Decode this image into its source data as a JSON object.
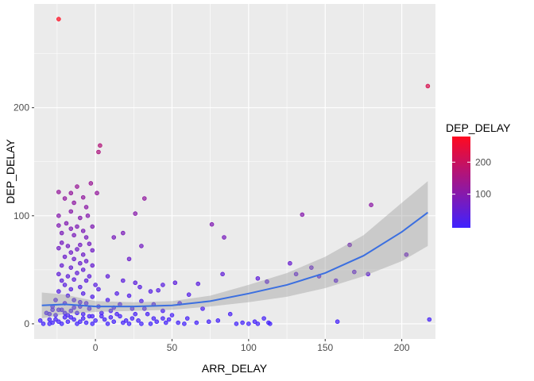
{
  "chart_data": {
    "type": "scatter",
    "xlabel": "ARR_DELAY",
    "ylabel": "DEP_DELAY",
    "xlim": [
      -40,
      222
    ],
    "ylim": [
      -14,
      296
    ],
    "x_ticks": [
      0,
      50,
      100,
      150,
      200
    ],
    "y_ticks": [
      0,
      100,
      200
    ],
    "grid": true,
    "panel_background": "#ebebeb",
    "legend": {
      "title": "DEP_DELAY",
      "position": "right",
      "breaks": [
        100,
        200
      ],
      "color_low": "#3f22ff",
      "color_high": "#ff0a1f",
      "range": [
        -5,
        280
      ]
    },
    "smooth": {
      "method": "quadratic",
      "color": "#3b6fe0",
      "band_color": "#999999",
      "points": [
        {
          "x": -35,
          "y": 17,
          "lo": 5,
          "hi": 29
        },
        {
          "x": -20,
          "y": 18,
          "lo": 9,
          "hi": 27
        },
        {
          "x": 0,
          "y": 16,
          "lo": 11,
          "hi": 21
        },
        {
          "x": 25,
          "y": 16,
          "lo": 12,
          "hi": 20
        },
        {
          "x": 50,
          "y": 17,
          "lo": 13,
          "hi": 21
        },
        {
          "x": 75,
          "y": 21,
          "lo": 16,
          "hi": 26
        },
        {
          "x": 100,
          "y": 28,
          "lo": 20,
          "hi": 36
        },
        {
          "x": 125,
          "y": 36,
          "lo": 25,
          "hi": 47
        },
        {
          "x": 150,
          "y": 47,
          "lo": 33,
          "hi": 62
        },
        {
          "x": 175,
          "y": 63,
          "lo": 44,
          "hi": 82
        },
        {
          "x": 200,
          "y": 85,
          "lo": 58,
          "hi": 112
        },
        {
          "x": 217,
          "y": 103,
          "lo": 72,
          "hi": 132
        }
      ]
    },
    "points": [
      [
        -24,
        282
      ],
      [
        217,
        220
      ],
      [
        3,
        165
      ],
      [
        2,
        159
      ],
      [
        -3,
        130
      ],
      [
        -12,
        127
      ],
      [
        -24,
        122
      ],
      [
        -16,
        121
      ],
      [
        1,
        121
      ],
      [
        -8,
        117
      ],
      [
        -20,
        116
      ],
      [
        32,
        116
      ],
      [
        -14,
        112
      ],
      [
        -6,
        108
      ],
      [
        -16,
        104
      ],
      [
        -24,
        100
      ],
      [
        -5,
        100
      ],
      [
        -10,
        98
      ],
      [
        26,
        102
      ],
      [
        135,
        101
      ],
      [
        180,
        110
      ],
      [
        -19,
        93
      ],
      [
        -24,
        91
      ],
      [
        -12,
        90
      ],
      [
        -2,
        90
      ],
      [
        76,
        92
      ],
      [
        -16,
        88
      ],
      [
        -8,
        86
      ],
      [
        -22,
        84
      ],
      [
        18,
        84
      ],
      [
        -14,
        82
      ],
      [
        84,
        80
      ],
      [
        -6,
        80
      ],
      [
        12,
        80
      ],
      [
        -22,
        75
      ],
      [
        -18,
        72
      ],
      [
        -10,
        73
      ],
      [
        -4,
        74
      ],
      [
        30,
        72
      ],
      [
        -24,
        70
      ],
      [
        -12,
        69
      ],
      [
        -2,
        68
      ],
      [
        -16,
        66
      ],
      [
        -8,
        64
      ],
      [
        -20,
        62
      ],
      [
        -14,
        60
      ],
      [
        -6,
        58
      ],
      [
        22,
        60
      ],
      [
        -10,
        56
      ],
      [
        -22,
        54
      ],
      [
        -2,
        54
      ],
      [
        -16,
        52
      ],
      [
        -8,
        50
      ],
      [
        127,
        56
      ],
      [
        141,
        52
      ],
      [
        166,
        73
      ],
      [
        169,
        48
      ],
      [
        178,
        46
      ],
      [
        203,
        64
      ],
      [
        157,
        40
      ],
      [
        146,
        44
      ],
      [
        131,
        46
      ],
      [
        106,
        42
      ],
      [
        112,
        39
      ],
      [
        -24,
        46
      ],
      [
        -12,
        47
      ],
      [
        -18,
        44
      ],
      [
        -4,
        44
      ],
      [
        8,
        44
      ],
      [
        -22,
        40
      ],
      [
        -14,
        41
      ],
      [
        -6,
        40
      ],
      [
        18,
        40
      ],
      [
        26,
        38
      ],
      [
        -20,
        36
      ],
      [
        -10,
        34
      ],
      [
        0,
        36
      ],
      [
        -16,
        32
      ],
      [
        2,
        32
      ],
      [
        44,
        36
      ],
      [
        83,
        46
      ],
      [
        52,
        38
      ],
      [
        67,
        37
      ],
      [
        29,
        34
      ],
      [
        36,
        30
      ],
      [
        -24,
        30
      ],
      [
        -8,
        28
      ],
      [
        14,
        28
      ],
      [
        41,
        31
      ],
      [
        -18,
        26
      ],
      [
        -2,
        25
      ],
      [
        22,
        26
      ],
      [
        61,
        27
      ],
      [
        -14,
        22
      ],
      [
        -26,
        22
      ],
      [
        8,
        22
      ],
      [
        30,
        21
      ],
      [
        -20,
        19
      ],
      [
        -6,
        19
      ],
      [
        16,
        18
      ],
      [
        38,
        18
      ],
      [
        55,
        19
      ],
      [
        -10,
        16
      ],
      [
        -28,
        16
      ],
      [
        2,
        16
      ],
      [
        24,
        14
      ],
      [
        -22,
        13
      ],
      [
        -16,
        12
      ],
      [
        10,
        12
      ],
      [
        44,
        12
      ],
      [
        70,
        14
      ],
      [
        -32,
        10
      ],
      [
        -12,
        10
      ],
      [
        4,
        10
      ],
      [
        34,
        9
      ],
      [
        -26,
        8
      ],
      [
        -4,
        7
      ],
      [
        16,
        7
      ],
      [
        50,
        8
      ],
      [
        88,
        9
      ],
      [
        -20,
        6
      ],
      [
        -8,
        5
      ],
      [
        24,
        5
      ],
      [
        -30,
        4
      ],
      [
        -14,
        4
      ],
      [
        6,
        4
      ],
      [
        60,
        5
      ],
      [
        -36,
        3
      ],
      [
        -24,
        2
      ],
      [
        -18,
        2
      ],
      [
        -10,
        2
      ],
      [
        0,
        3
      ],
      [
        12,
        2
      ],
      [
        28,
        3
      ],
      [
        40,
        2
      ],
      [
        -28,
        1
      ],
      [
        -6,
        1
      ],
      [
        18,
        1
      ],
      [
        46,
        1
      ],
      [
        80,
        3
      ],
      [
        -22,
        0
      ],
      [
        -12,
        0
      ],
      [
        -2,
        0
      ],
      [
        8,
        0
      ],
      [
        22,
        0
      ],
      [
        36,
        0
      ],
      [
        54,
        1
      ],
      [
        66,
        1
      ],
      [
        74,
        2
      ],
      [
        96,
        1
      ],
      [
        104,
        2
      ],
      [
        110,
        5
      ],
      [
        113,
        1
      ],
      [
        -34,
        0
      ],
      [
        -16,
        6
      ],
      [
        -30,
        0
      ],
      [
        30,
        0
      ],
      [
        58,
        0
      ],
      [
        92,
        0
      ],
      [
        100,
        0
      ],
      [
        106,
        0
      ],
      [
        114,
        0
      ],
      [
        158,
        2
      ],
      [
        218,
        4
      ],
      [
        4,
        7
      ],
      [
        -24,
        13
      ],
      [
        -26,
        4
      ],
      [
        -8,
        9
      ],
      [
        14,
        9
      ],
      [
        32,
        14
      ],
      [
        48,
        4
      ],
      [
        -18,
        8
      ],
      [
        -4,
        14
      ],
      [
        20,
        3
      ],
      [
        -14,
        15
      ],
      [
        10,
        6
      ],
      [
        38,
        5
      ],
      [
        -20,
        10
      ],
      [
        -30,
        9
      ],
      [
        -10,
        20
      ],
      [
        26,
        9
      ],
      [
        44,
        5
      ],
      [
        -2,
        7
      ],
      [
        -28,
        13
      ],
      [
        12,
        15
      ]
    ]
  }
}
